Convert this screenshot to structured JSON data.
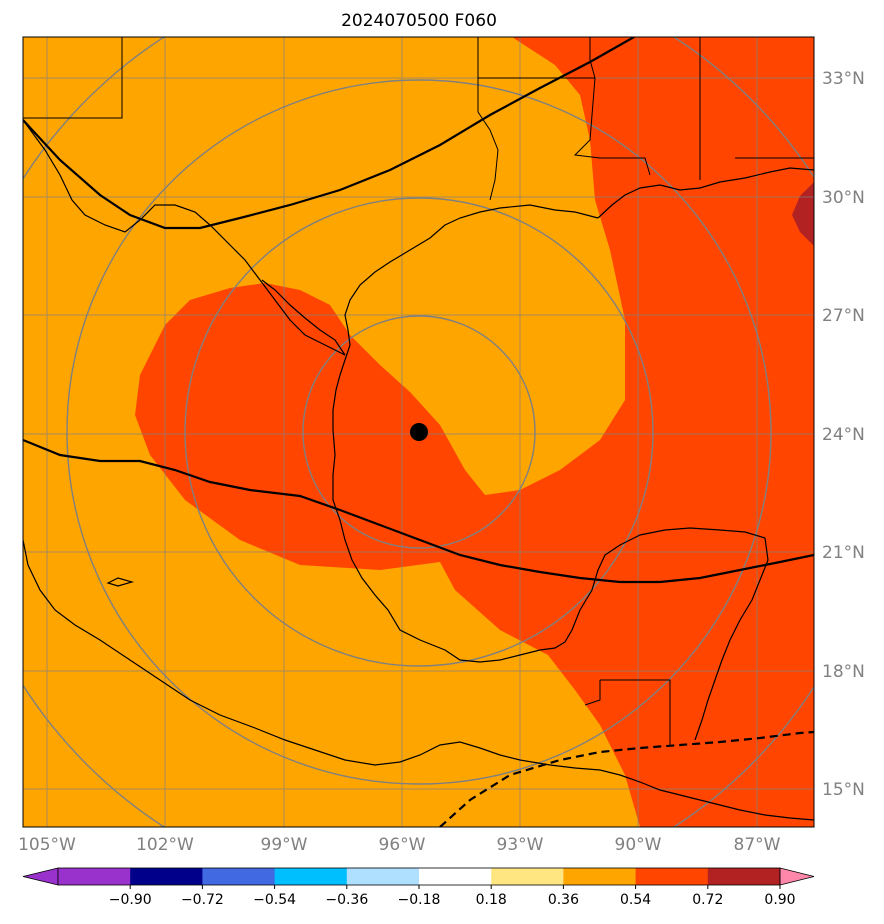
{
  "title": "2024070500 F060",
  "colors": {
    "orange": "#FFA500",
    "orangered": "#FF4500",
    "firebrick": "#B22222",
    "grid": "#808080",
    "coast": "#000000",
    "contour": "#808080",
    "track": "#000000"
  },
  "map": {
    "projection": "plate-carree",
    "lon_range": [
      -106,
      -86
    ],
    "lat_range": [
      14,
      34
    ],
    "center_marker": {
      "lon": -95.0,
      "lat": 24.0,
      "icon": "storm-center-dot"
    }
  },
  "lat_ticks": [
    "33°N",
    "30°N",
    "27°N",
    "24°N",
    "21°N",
    "18°N",
    "15°N"
  ],
  "lon_ticks": [
    "105°W",
    "102°W",
    "99°W",
    "96°W",
    "93°W",
    "90°W",
    "87°W"
  ],
  "colorbar": {
    "labels": [
      "−0.90",
      "−0.72",
      "−0.54",
      "−0.36",
      "−0.18",
      "0.18",
      "0.36",
      "0.54",
      "0.72",
      "0.90"
    ],
    "colors": [
      "#9932CC",
      "#00008B",
      "#4169E1",
      "#00BFFF",
      "#B0E0FF",
      "#FFFFFF",
      "#FFE680",
      "#FFA500",
      "#FF4500",
      "#B22222"
    ],
    "under_color": "#9932CC",
    "over_color": "#FF88AA"
  }
}
